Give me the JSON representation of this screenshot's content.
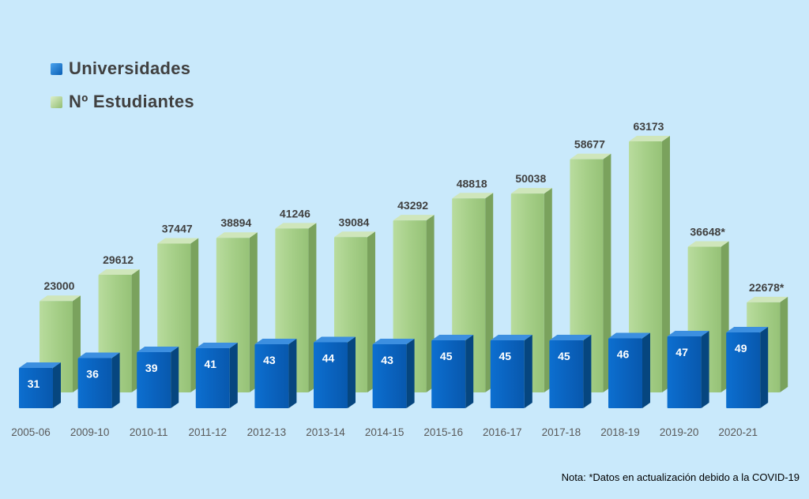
{
  "chart_data": {
    "type": "bar",
    "categories": [
      "2005-06",
      "2009-10",
      "2010-11",
      "2011-12",
      "2012-13",
      "2013-14",
      "2014-15",
      "2015-16",
      "2016-17",
      "2017-18",
      "2018-19",
      "2019-20",
      "2020-21"
    ],
    "series": [
      {
        "name": "Universidades",
        "values": [
          31,
          36,
          39,
          41,
          43,
          44,
          43,
          45,
          45,
          45,
          46,
          47,
          49
        ],
        "labels": [
          "31",
          "36",
          "39",
          "41",
          "43",
          "44",
          "43",
          "45",
          "45",
          "45",
          "46",
          "47",
          "49"
        ],
        "color": "#0a6cc8"
      },
      {
        "name": "Nº Estudiantes",
        "values": [
          23000,
          29612,
          37447,
          38894,
          41246,
          39084,
          43292,
          48818,
          50038,
          58677,
          63173,
          36648,
          22678
        ],
        "labels": [
          "23000",
          "29612",
          "37447",
          "38894",
          "41246",
          "39084",
          "43292",
          "48818",
          "50038",
          "58677",
          "63173",
          "36648*",
          "22678*"
        ],
        "color": "#a9d18e"
      }
    ],
    "legend_position": "top-left",
    "grid": false
  },
  "legend": {
    "items": [
      {
        "label": "Universidades",
        "color": "#0a6cc8"
      },
      {
        "label": "Nº Estudiantes",
        "color": "#a9d18e"
      }
    ]
  },
  "note": "Nota: *Datos en actualización debido a la COVID-19"
}
